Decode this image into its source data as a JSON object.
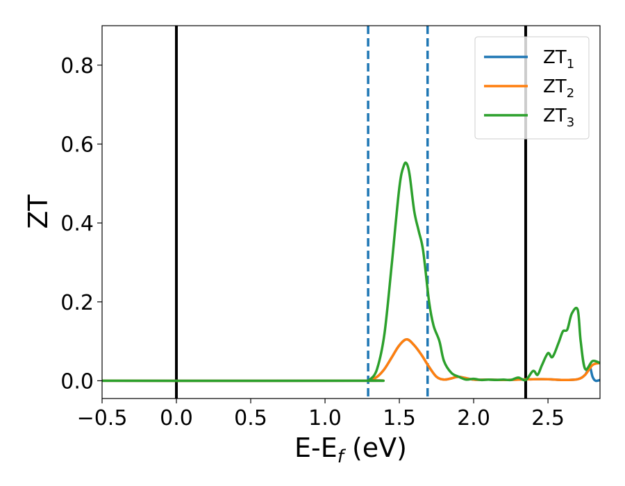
{
  "chart_data": {
    "type": "line",
    "xlabel": "E-E",
    "xlabel_sub": "f",
    "xlabel_unit": " (eV)",
    "ylabel": "ZT",
    "xlim": [
      -0.5,
      2.85
    ],
    "ylim": [
      -0.045,
      0.9
    ],
    "xticks": [
      -0.5,
      0.0,
      0.5,
      1.0,
      1.5,
      2.0,
      2.5
    ],
    "xtick_labels": [
      "−0.5",
      "0.0",
      "0.5",
      "1.0",
      "1.5",
      "2.0",
      "2.5"
    ],
    "yticks": [
      0.0,
      0.2,
      0.4,
      0.6,
      0.8
    ],
    "ytick_labels": [
      "0.0",
      "0.2",
      "0.4",
      "0.6",
      "0.8"
    ],
    "vlines": [
      {
        "x": 0.0,
        "style": "solid",
        "color": "#000000"
      },
      {
        "x": 2.35,
        "style": "solid",
        "color": "#000000"
      },
      {
        "x": 1.29,
        "style": "dashed",
        "color": "#1f77b4"
      },
      {
        "x": 1.69,
        "style": "dashed",
        "color": "#1f77b4"
      }
    ],
    "grid": false,
    "legend_position": "top-right",
    "series": [
      {
        "name": "ZT",
        "sub": "1",
        "color": "#1f77b4",
        "x": [
          -0.5,
          1.25,
          1.3,
          1.35,
          1.4,
          1.45,
          1.5,
          1.55,
          1.6,
          1.65,
          1.7,
          1.75,
          1.8,
          1.85,
          1.9,
          2.0,
          2.1,
          2.2,
          2.3,
          2.4,
          2.5,
          2.6,
          2.7,
          2.75,
          2.78,
          2.8,
          2.82,
          2.85
        ],
        "y": [
          0.0,
          0.0,
          0.002,
          0.01,
          0.03,
          0.06,
          0.09,
          0.105,
          0.09,
          0.065,
          0.035,
          0.01,
          0.003,
          0.006,
          0.01,
          0.003,
          0.003,
          0.002,
          0.003,
          0.004,
          0.004,
          0.002,
          0.004,
          0.015,
          0.035,
          0.01,
          0.0,
          0.002
        ]
      },
      {
        "name": "ZT",
        "sub": "2",
        "color": "#ff7f0e",
        "x": [
          -0.5,
          1.25,
          1.3,
          1.35,
          1.4,
          1.45,
          1.5,
          1.55,
          1.6,
          1.65,
          1.7,
          1.75,
          1.8,
          1.85,
          1.9,
          2.0,
          2.1,
          2.2,
          2.3,
          2.4,
          2.5,
          2.6,
          2.7,
          2.75,
          2.8,
          2.85
        ],
        "y": [
          0.0,
          0.0,
          0.002,
          0.01,
          0.03,
          0.06,
          0.09,
          0.105,
          0.09,
          0.065,
          0.035,
          0.01,
          0.003,
          0.006,
          0.01,
          0.003,
          0.003,
          0.002,
          0.003,
          0.004,
          0.004,
          0.002,
          0.004,
          0.015,
          0.04,
          0.045
        ]
      },
      {
        "name": "ZT",
        "sub": "3",
        "color": "#2ca02c",
        "x": [
          -0.5,
          1.25,
          1.3,
          1.35,
          1.4,
          1.45,
          1.5,
          1.53,
          1.55,
          1.57,
          1.6,
          1.63,
          1.66,
          1.7,
          1.73,
          1.77,
          1.8,
          1.85,
          1.9,
          1.95,
          2.0,
          2.05,
          2.1,
          2.15,
          2.2,
          2.25,
          2.3,
          2.35,
          2.4,
          2.43,
          2.46,
          2.5,
          2.53,
          2.57,
          2.6,
          2.63,
          2.66,
          2.7,
          2.72,
          2.75,
          2.8,
          2.85
        ],
        "y": [
          0.0,
          0.0,
          0.003,
          0.03,
          0.12,
          0.3,
          0.49,
          0.545,
          0.55,
          0.52,
          0.43,
          0.38,
          0.33,
          0.2,
          0.14,
          0.1,
          0.05,
          0.02,
          0.01,
          0.003,
          0.005,
          0.002,
          0.003,
          0.002,
          0.003,
          0.002,
          0.008,
          0.002,
          0.025,
          0.015,
          0.04,
          0.07,
          0.06,
          0.095,
          0.125,
          0.13,
          0.17,
          0.18,
          0.1,
          0.03,
          0.05,
          0.045
        ]
      }
    ]
  }
}
